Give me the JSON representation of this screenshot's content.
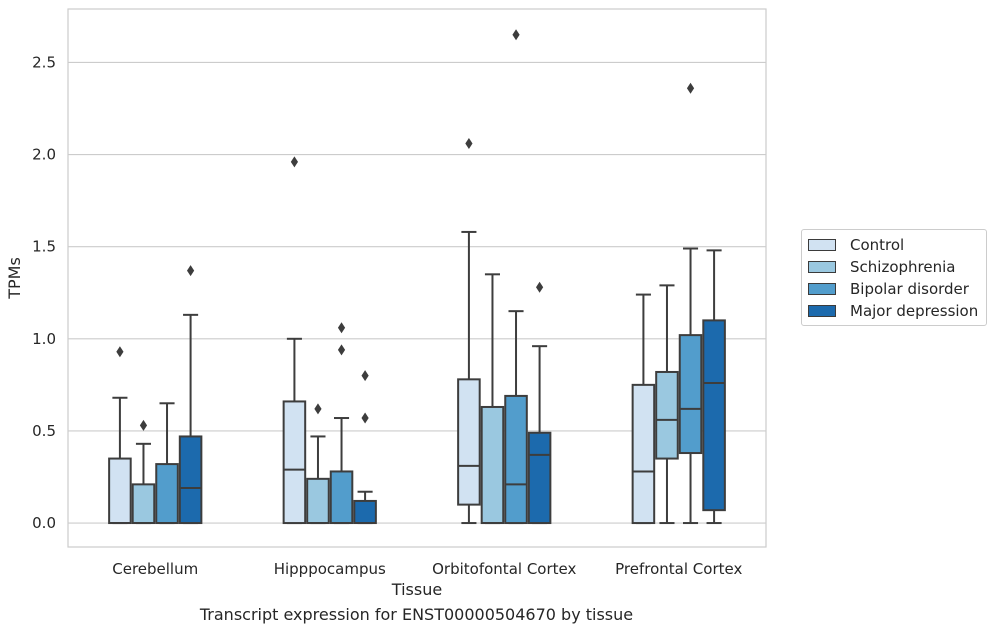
{
  "caption": "Transcript expression for ENST00000504670 by tissue",
  "chart_data": {
    "type": "box",
    "xlabel": "Tissue",
    "ylabel": "TPMs",
    "ylim": [
      -0.13,
      2.79
    ],
    "yticks": [
      "0.0",
      "0.5",
      "1.0",
      "1.5",
      "2.0",
      "2.5"
    ],
    "grid": "horizontal",
    "legend_position": "right",
    "categories": [
      "Cerebellum",
      "Hipppocampus",
      "Orbitofontal Cortex",
      "Prefrontal Cortex"
    ],
    "series": [
      {
        "name": "Control",
        "color": "#d1e2f2",
        "boxes": [
          {
            "whisker_low": 0,
            "q1": 0,
            "median": 0.0,
            "q3": 0.35,
            "whisker_high": 0.68,
            "outliers": [
              0.93
            ]
          },
          {
            "whisker_low": 0,
            "q1": 0,
            "median": 0.29,
            "q3": 0.66,
            "whisker_high": 1.0,
            "outliers": [
              1.96
            ]
          },
          {
            "whisker_low": 0,
            "q1": 0.1,
            "median": 0.31,
            "q3": 0.78,
            "whisker_high": 1.58,
            "outliers": [
              2.06
            ]
          },
          {
            "whisker_low": 0,
            "q1": 0,
            "median": 0.28,
            "q3": 0.75,
            "whisker_high": 1.24,
            "outliers": []
          }
        ]
      },
      {
        "name": "Schizophrenia",
        "color": "#9ac8e0",
        "boxes": [
          {
            "whisker_low": 0,
            "q1": 0,
            "median": 0.0,
            "q3": 0.21,
            "whisker_high": 0.43,
            "outliers": [
              0.53
            ]
          },
          {
            "whisker_low": 0,
            "q1": 0,
            "median": 0.0,
            "q3": 0.24,
            "whisker_high": 0.47,
            "outliers": [
              0.62
            ]
          },
          {
            "whisker_low": 0,
            "q1": 0,
            "median": 0.0,
            "q3": 0.63,
            "whisker_high": 1.35,
            "outliers": []
          },
          {
            "whisker_low": 0,
            "q1": 0.35,
            "median": 0.56,
            "q3": 0.82,
            "whisker_high": 1.29,
            "outliers": []
          }
        ]
      },
      {
        "name": "Bipolar disorder",
        "color": "#529dcc",
        "boxes": [
          {
            "whisker_low": 0,
            "q1": 0,
            "median": 0.0,
            "q3": 0.32,
            "whisker_high": 0.65,
            "outliers": []
          },
          {
            "whisker_low": 0,
            "q1": 0,
            "median": 0.0,
            "q3": 0.28,
            "whisker_high": 0.57,
            "outliers": [
              0.94,
              1.06
            ]
          },
          {
            "whisker_low": 0,
            "q1": 0,
            "median": 0.21,
            "q3": 0.69,
            "whisker_high": 1.15,
            "outliers": [
              2.65
            ]
          },
          {
            "whisker_low": 0,
            "q1": 0.38,
            "median": 0.62,
            "q3": 1.02,
            "whisker_high": 1.49,
            "outliers": [
              2.36
            ]
          }
        ]
      },
      {
        "name": "Major depression",
        "color": "#1c6aad",
        "boxes": [
          {
            "whisker_low": 0,
            "q1": 0,
            "median": 0.19,
            "q3": 0.47,
            "whisker_high": 1.13,
            "outliers": [
              1.37
            ]
          },
          {
            "whisker_low": 0,
            "q1": 0,
            "median": 0.0,
            "q3": 0.12,
            "whisker_high": 0.17,
            "outliers": [
              0.57,
              0.8
            ]
          },
          {
            "whisker_low": 0,
            "q1": 0,
            "median": 0.37,
            "q3": 0.49,
            "whisker_high": 0.96,
            "outliers": [
              1.28
            ]
          },
          {
            "whisker_low": 0,
            "q1": 0.07,
            "median": 0.76,
            "q3": 1.1,
            "whisker_high": 1.48,
            "outliers": []
          }
        ]
      }
    ]
  }
}
